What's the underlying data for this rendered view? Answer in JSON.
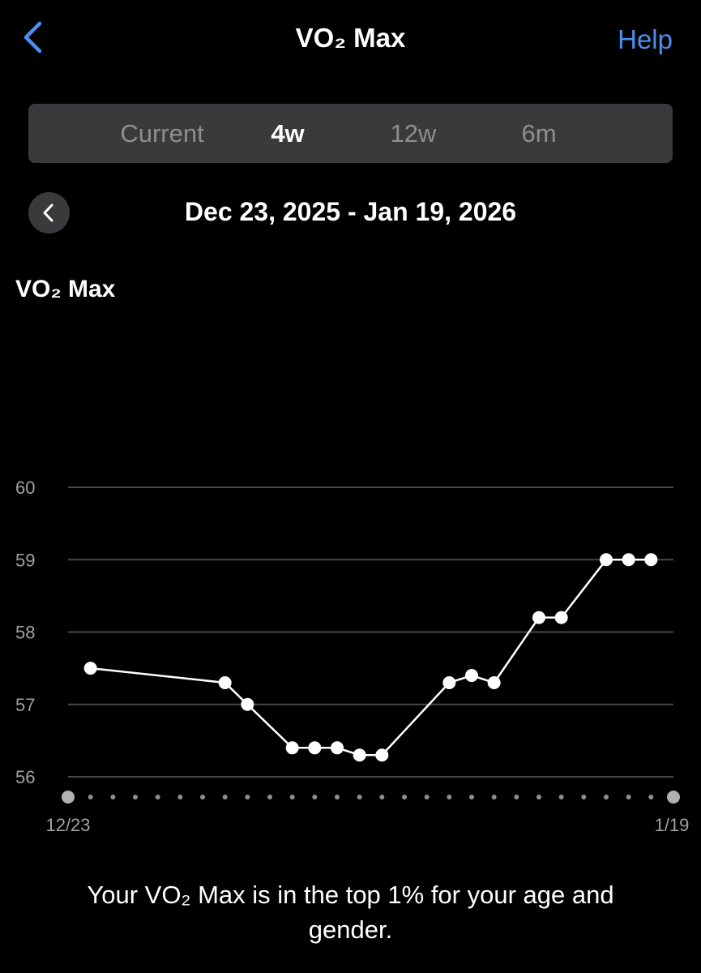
{
  "nav": {
    "back_icon": "chevron-left-icon",
    "title": "VO₂ Max",
    "help_label": "Help",
    "accent_color": "#4d8ff0"
  },
  "segments": {
    "items": [
      "Current",
      "4w",
      "12w",
      "6m"
    ],
    "selected": "4w"
  },
  "date_range": {
    "prev_icon": "chevron-left-icon",
    "label": "Dec 23, 2025 - Jan 19, 2026"
  },
  "chart_title": "VO₂ Max",
  "chart_data": {
    "type": "line",
    "ylim": [
      56,
      60
    ],
    "y_ticks": [
      "56",
      "57",
      "58",
      "59",
      "60"
    ],
    "x_labels": [
      "12/23",
      "1/19"
    ],
    "x_day_count": 28,
    "x": [
      1,
      7,
      8,
      10,
      11,
      12,
      13,
      14,
      17,
      18,
      19,
      21,
      22,
      24,
      25,
      26
    ],
    "values": [
      57.5,
      57.3,
      57.0,
      56.4,
      56.4,
      56.4,
      56.3,
      56.3,
      57.3,
      57.4,
      57.3,
      58.2,
      58.2,
      59.0,
      59.0,
      59.0
    ],
    "grid": true,
    "line_color": "#ffffff"
  },
  "note": "Your VO₂ Max is in the top 1% for your age and gender."
}
